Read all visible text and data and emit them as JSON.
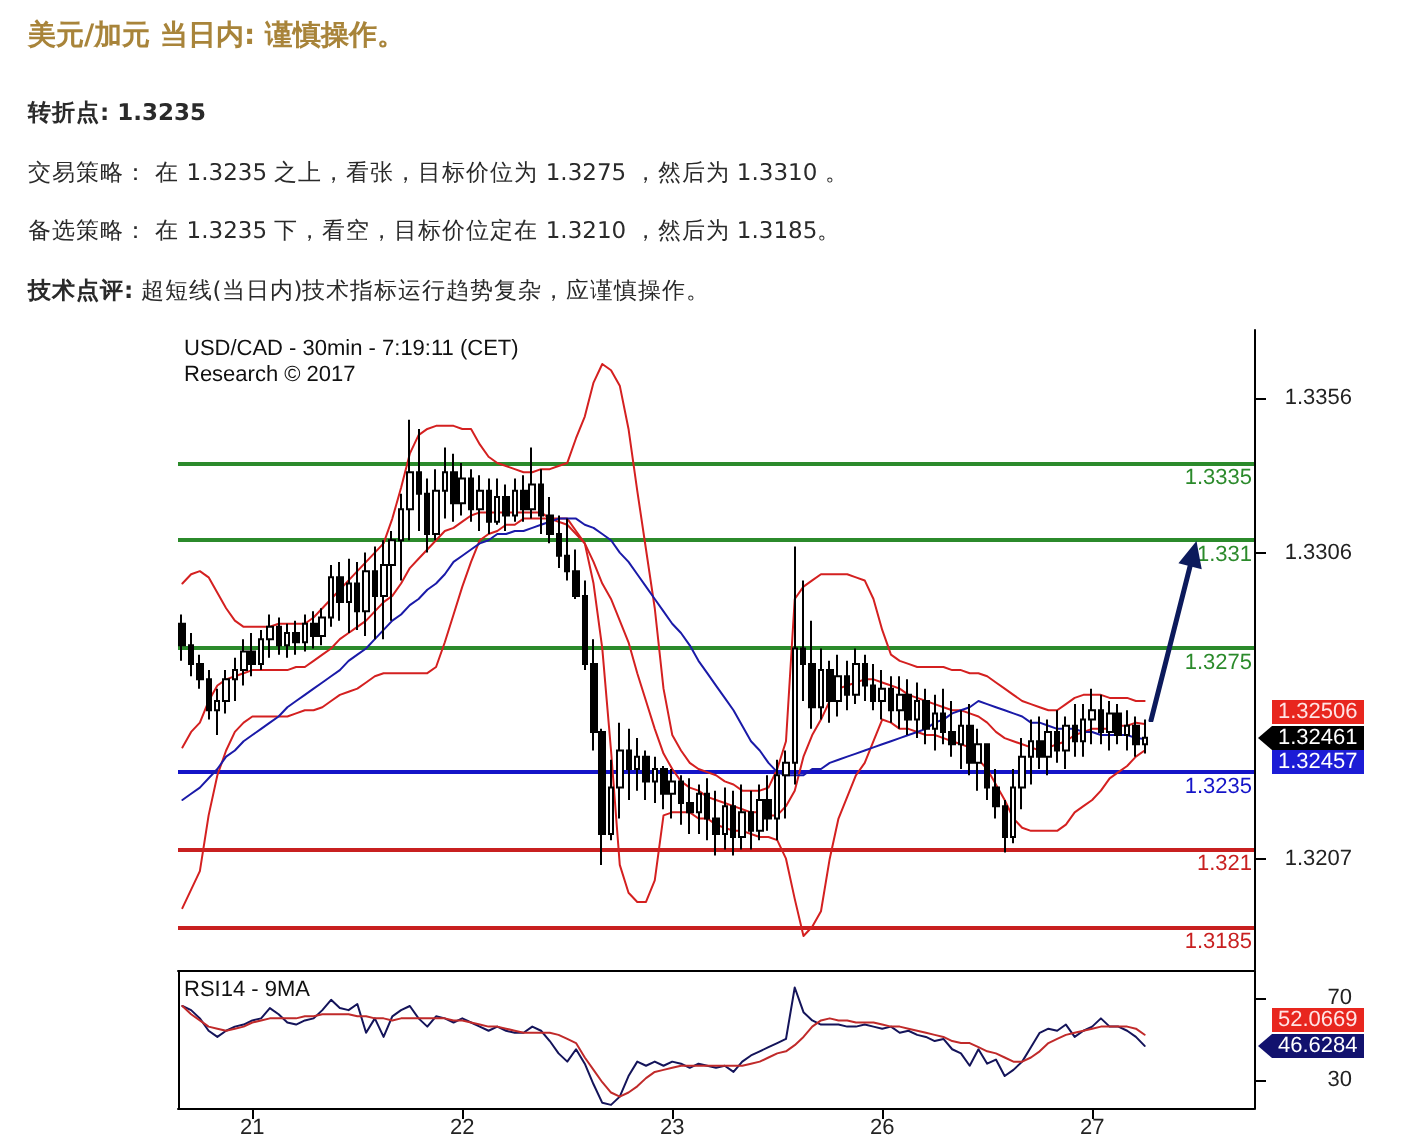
{
  "chart_data": [
    {
      "type": "candlestick",
      "title": "美元/加元 当日内: 谨慎操作。",
      "subtitle": "USD/CAD - 30min - 7:19:11 (CET)\nResearch © 2017",
      "annotations": [
        "转折点: 1.3235",
        "交易策略： 在 1.3235 之上，看张，目标价位为 1.3275 ，然后为 1.3310 。",
        "备选策略： 在 1.3235 下，看空，目标价位定在 1.3210 ，然后为 1.3185。",
        "技术点评: 超短线(当日内)技术指标运行趋势复杂，应谨慎操作。",
        "1.32506",
        "1.32461",
        "1.32457"
      ],
      "categories": [
        null,
        null,
        null,
        null,
        null,
        null,
        null,
        null,
        null,
        null,
        null,
        null,
        null,
        null,
        null,
        null,
        null,
        null,
        null,
        null,
        null,
        null,
        null,
        null,
        null,
        null,
        null,
        null,
        null,
        null,
        null,
        null,
        null,
        null,
        null,
        null,
        null,
        null,
        null,
        null,
        null,
        null,
        null,
        null,
        null,
        null,
        null,
        null,
        null,
        null,
        null,
        null,
        null,
        null,
        null,
        null,
        null,
        null,
        null,
        null,
        null,
        null,
        null,
        null,
        null,
        null,
        null,
        null,
        null,
        null,
        null,
        null,
        null,
        null,
        null,
        null,
        null,
        null,
        null,
        null,
        null,
        null,
        null,
        null,
        null,
        null,
        null,
        null,
        null,
        null,
        null,
        null,
        null,
        null,
        null,
        null,
        null,
        null,
        null,
        null,
        null,
        null,
        null,
        null,
        null,
        null,
        null,
        null,
        null,
        null,
        null
      ],
      "color": "#000000",
      "ohlc": [
        [
          1.3283,
          1.3286,
          1.3271,
          1.3276
        ],
        [
          1.3276,
          1.328,
          1.3266,
          1.327
        ],
        [
          1.327,
          1.3273,
          1.3262,
          1.3265
        ],
        [
          1.3265,
          1.3268,
          1.3252,
          1.3255
        ],
        [
          1.3255,
          1.3262,
          1.3247,
          1.3258
        ],
        [
          1.3258,
          1.3268,
          1.3254,
          1.3265
        ],
        [
          1.3265,
          1.3272,
          1.3258,
          1.3268
        ],
        [
          1.3268,
          1.3278,
          1.3263,
          1.3274
        ],
        [
          1.3274,
          1.328,
          1.3266,
          1.327
        ],
        [
          1.327,
          1.3281,
          1.3268,
          1.3278
        ],
        [
          1.3278,
          1.3286,
          1.3272,
          1.3282
        ],
        [
          1.3282,
          1.3285,
          1.3273,
          1.3276
        ],
        [
          1.3276,
          1.3283,
          1.3272,
          1.328
        ],
        [
          1.328,
          1.3284,
          1.3273,
          1.3277
        ],
        [
          1.3277,
          1.3286,
          1.3274,
          1.3283
        ],
        [
          1.3283,
          1.3287,
          1.3275,
          1.3279
        ],
        [
          1.3279,
          1.3288,
          1.3276,
          1.3285
        ],
        [
          1.3285,
          1.3302,
          1.3282,
          1.3298
        ],
        [
          1.3298,
          1.3303,
          1.3284,
          1.329
        ],
        [
          1.329,
          1.3304,
          1.328,
          1.3296
        ],
        [
          1.3296,
          1.3303,
          1.3281,
          1.3287
        ],
        [
          1.3287,
          1.3306,
          1.3279,
          1.33
        ],
        [
          1.33,
          1.3308,
          1.3278,
          1.3292
        ],
        [
          1.3292,
          1.331,
          1.3278,
          1.3302
        ],
        [
          1.3302,
          1.3313,
          1.3284,
          1.331
        ],
        [
          1.331,
          1.3325,
          1.3297,
          1.332
        ],
        [
          1.332,
          1.3349,
          1.331,
          1.3332
        ],
        [
          1.3332,
          1.3346,
          1.3313,
          1.3325
        ],
        [
          1.3325,
          1.333,
          1.3306,
          1.3312
        ],
        [
          1.3312,
          1.3333,
          1.331,
          1.3326
        ],
        [
          1.3326,
          1.334,
          1.3317,
          1.3332
        ],
        [
          1.3332,
          1.3338,
          1.3316,
          1.3322
        ],
        [
          1.3322,
          1.3335,
          1.3318,
          1.333
        ],
        [
          1.333,
          1.3333,
          1.3316,
          1.332
        ],
        [
          1.332,
          1.3331,
          1.3313,
          1.3326
        ],
        [
          1.3326,
          1.333,
          1.3312,
          1.3316
        ],
        [
          1.3316,
          1.333,
          1.3315,
          1.3324
        ],
        [
          1.3324,
          1.3328,
          1.3313,
          1.3318
        ],
        [
          1.3318,
          1.333,
          1.3316,
          1.3326
        ],
        [
          1.3326,
          1.3331,
          1.3316,
          1.332
        ],
        [
          1.332,
          1.334,
          1.3317,
          1.3328
        ],
        [
          1.3328,
          1.3333,
          1.3312,
          1.3318
        ],
        [
          1.3318,
          1.3324,
          1.3309,
          1.3312
        ],
        [
          1.3312,
          1.3318,
          1.3301,
          1.3305
        ],
        [
          1.3305,
          1.3317,
          1.3297,
          1.33
        ],
        [
          1.33,
          1.3307,
          1.3291,
          1.3292
        ],
        [
          1.3292,
          1.3297,
          1.3268,
          1.327
        ],
        [
          1.327,
          1.3278,
          1.3242,
          1.3248
        ],
        [
          1.3248,
          1.3249,
          1.3205,
          1.3215
        ],
        [
          1.3215,
          1.3239,
          1.3213,
          1.323
        ],
        [
          1.323,
          1.3251,
          1.322,
          1.3242
        ],
        [
          1.3242,
          1.3249,
          1.3226,
          1.3236
        ],
        [
          1.3236,
          1.3246,
          1.3229,
          1.324
        ],
        [
          1.324,
          1.3242,
          1.3226,
          1.3232
        ],
        [
          1.3232,
          1.324,
          1.3225,
          1.3236
        ],
        [
          1.3236,
          1.3237,
          1.3223,
          1.3228
        ],
        [
          1.3228,
          1.3236,
          1.322,
          1.3232
        ],
        [
          1.3232,
          1.3234,
          1.3218,
          1.3225
        ],
        [
          1.3225,
          1.3233,
          1.3215,
          1.3222
        ],
        [
          1.3222,
          1.3231,
          1.3215,
          1.3228
        ],
        [
          1.3228,
          1.3233,
          1.3213,
          1.322
        ],
        [
          1.322,
          1.3229,
          1.3208,
          1.3215
        ],
        [
          1.3215,
          1.323,
          1.321,
          1.3224
        ],
        [
          1.3224,
          1.3229,
          1.3208,
          1.3214
        ],
        [
          1.3214,
          1.3231,
          1.321,
          1.3222
        ],
        [
          1.3222,
          1.3229,
          1.321,
          1.3216
        ],
        [
          1.3216,
          1.3231,
          1.3213,
          1.3226
        ],
        [
          1.3226,
          1.3234,
          1.3216,
          1.322
        ],
        [
          1.322,
          1.3239,
          1.3213,
          1.3234
        ],
        [
          1.3234,
          1.3242,
          1.322,
          1.3238
        ],
        [
          1.3238,
          1.3308,
          1.3231,
          1.3275
        ],
        [
          1.3275,
          1.3297,
          1.3258,
          1.327
        ],
        [
          1.327,
          1.3284,
          1.3249,
          1.3256
        ],
        [
          1.3256,
          1.3275,
          1.3252,
          1.3268
        ],
        [
          1.3268,
          1.3271,
          1.3251,
          1.3258
        ],
        [
          1.3258,
          1.3273,
          1.3253,
          1.3266
        ],
        [
          1.3266,
          1.3271,
          1.3255,
          1.326
        ],
        [
          1.326,
          1.3275,
          1.3257,
          1.327
        ],
        [
          1.327,
          1.3273,
          1.3258,
          1.3263
        ],
        [
          1.3263,
          1.327,
          1.3255,
          1.3258
        ],
        [
          1.3258,
          1.3268,
          1.3252,
          1.3262
        ],
        [
          1.3262,
          1.3266,
          1.3251,
          1.3255
        ],
        [
          1.3255,
          1.3266,
          1.3249,
          1.326
        ],
        [
          1.326,
          1.3265,
          1.3247,
          1.3252
        ],
        [
          1.3252,
          1.3264,
          1.3246,
          1.3258
        ],
        [
          1.3258,
          1.3262,
          1.3244,
          1.3249
        ],
        [
          1.3249,
          1.326,
          1.3242,
          1.3254
        ],
        [
          1.3254,
          1.3262,
          1.3244,
          1.3248
        ],
        [
          1.3248,
          1.3258,
          1.324,
          1.3244
        ],
        [
          1.3244,
          1.3255,
          1.3236,
          1.325
        ],
        [
          1.325,
          1.3257,
          1.3234,
          1.3238
        ],
        [
          1.3238,
          1.3249,
          1.3229,
          1.3244
        ],
        [
          1.3244,
          1.3244,
          1.3226,
          1.323
        ],
        [
          1.323,
          1.3236,
          1.322,
          1.3224
        ],
        [
          1.3224,
          1.3226,
          1.3209,
          1.3214
        ],
        [
          1.3214,
          1.3236,
          1.3212,
          1.323
        ],
        [
          1.323,
          1.3246,
          1.3223,
          1.324
        ],
        [
          1.324,
          1.3252,
          1.3231,
          1.3245
        ],
        [
          1.3245,
          1.3253,
          1.3236,
          1.324
        ],
        [
          1.324,
          1.3252,
          1.3234,
          1.3248
        ],
        [
          1.3248,
          1.3255,
          1.3238,
          1.3242
        ],
        [
          1.3242,
          1.3253,
          1.3236,
          1.325
        ],
        [
          1.325,
          1.3257,
          1.324,
          1.3245
        ],
        [
          1.3245,
          1.3257,
          1.324,
          1.3252
        ],
        [
          1.3252,
          1.3262,
          1.3244,
          1.3255
        ],
        [
          1.3255,
          1.326,
          1.3244,
          1.3248
        ],
        [
          1.3248,
          1.3258,
          1.3242,
          1.3254
        ],
        [
          1.3254,
          1.3257,
          1.3244,
          1.3247
        ],
        [
          1.3247,
          1.3255,
          1.3242,
          1.325
        ],
        [
          1.325,
          1.3253,
          1.324,
          1.3244
        ],
        [
          1.3244,
          1.3252,
          1.3241,
          1.32461
        ]
      ],
      "series": [
        {
          "type": "line",
          "color": "#d42020",
          "values": [
            1.3296,
            1.3299,
            1.33,
            1.3298,
            1.3293,
            1.3288,
            1.3284,
            1.3282,
            1.3282,
            1.3282,
            1.3282,
            1.3283,
            1.3283,
            1.3283,
            1.3283,
            1.3285,
            1.3288,
            1.3291,
            1.3294,
            1.3297,
            1.33,
            1.3303,
            1.3306,
            1.3309,
            1.3317,
            1.3327,
            1.3338,
            1.3344,
            1.3346,
            1.3347,
            1.3347,
            1.3347,
            1.3346,
            1.3346,
            1.3341,
            1.3337,
            1.3335,
            1.3334,
            1.3333,
            1.3332,
            1.3332,
            1.3333,
            1.3333,
            1.3334,
            1.3335,
            1.3343,
            1.335,
            1.3361,
            1.3367,
            1.3365,
            1.336,
            1.3346,
            1.3326,
            1.3307,
            1.3288,
            1.3262,
            1.3247,
            1.3242,
            1.3238,
            1.3236,
            1.3235,
            1.3234,
            1.3232,
            1.3231,
            1.3229,
            1.3229,
            1.3229,
            1.323,
            1.3236,
            1.3245,
            1.3291,
            1.3295,
            1.3297,
            1.3299,
            1.3299,
            1.3299,
            1.3299,
            1.3298,
            1.3297,
            1.3291,
            1.3281,
            1.3273,
            1.3271,
            1.327,
            1.3269,
            1.3269,
            1.3269,
            1.3269,
            1.3268,
            1.3268,
            1.3267,
            1.3267,
            1.3266,
            1.3264,
            1.3262,
            1.326,
            1.3258,
            1.3257,
            1.3256,
            1.3255,
            1.3255,
            1.3257,
            1.3259,
            1.326,
            1.326,
            1.326,
            1.3259,
            1.3259,
            1.3259,
            1.3258,
            1.3258
          ]
        },
        {
          "type": "line",
          "color": "#d42020",
          "values": [
            1.3243,
            1.3248,
            1.3251,
            1.3258,
            1.3263,
            1.3265,
            1.3266,
            1.3267,
            1.3268,
            1.3268,
            1.3268,
            1.3268,
            1.3268,
            1.3269,
            1.3269,
            1.3271,
            1.3273,
            1.3275,
            1.3278,
            1.328,
            1.3282,
            1.3284,
            1.3287,
            1.329,
            1.3292,
            1.3296,
            1.3301,
            1.3304,
            1.3307,
            1.331,
            1.3313,
            1.3314,
            1.3316,
            1.3318,
            1.3319,
            1.3319,
            1.3319,
            1.3319,
            1.3319,
            1.3319,
            1.3319,
            1.3319,
            1.3317,
            1.3316,
            1.3315,
            1.3312,
            1.3309,
            1.3303,
            1.3296,
            1.3291,
            1.3284,
            1.3277,
            1.3267,
            1.3258,
            1.3249,
            1.3241,
            1.3236,
            1.3232,
            1.323,
            1.3229,
            1.3227,
            1.3226,
            1.3225,
            1.3224,
            1.3223,
            1.3222,
            1.3222,
            1.3221,
            1.3221,
            1.3224,
            1.3229,
            1.324,
            1.3247,
            1.3252,
            1.3258,
            1.3262,
            1.3263,
            1.3264,
            1.3265,
            1.3265,
            1.3264,
            1.3263,
            1.3262,
            1.326,
            1.3259,
            1.3258,
            1.3257,
            1.3256,
            1.3255,
            1.3255,
            1.3254,
            1.3253,
            1.3251,
            1.3248,
            1.3246,
            1.3245,
            1.3244,
            1.3243,
            1.3242,
            1.3243,
            1.3244,
            1.3245,
            1.3247,
            1.3248,
            1.3249,
            1.3249,
            1.3249,
            1.325,
            1.325,
            1.3251,
            1.32506
          ]
        },
        {
          "type": "line",
          "color": "#d42020",
          "values": [
            1.3191,
            1.3197,
            1.3203,
            1.3221,
            1.3234,
            1.3242,
            1.3248,
            1.3251,
            1.3253,
            1.3253,
            1.3253,
            1.3253,
            1.3253,
            1.3254,
            1.3255,
            1.3255,
            1.3256,
            1.3258,
            1.326,
            1.3261,
            1.3262,
            1.3264,
            1.3266,
            1.3267,
            1.3267,
            1.3267,
            1.3267,
            1.3267,
            1.3267,
            1.3269,
            1.3277,
            1.3286,
            1.3295,
            1.3303,
            1.331,
            1.3312,
            1.3313,
            1.3315,
            1.3315,
            1.3317,
            1.3317,
            1.3317,
            1.3317,
            1.3317,
            1.3317,
            1.3313,
            1.3309,
            1.3296,
            1.3275,
            1.3242,
            1.3205,
            1.3196,
            1.3193,
            1.3193,
            1.32,
            1.3221,
            1.3222,
            1.3222,
            1.3222,
            1.322,
            1.322,
            1.3218,
            1.3217,
            1.3216,
            1.3216,
            1.3215,
            1.3214,
            1.3214,
            1.3213,
            1.3207,
            1.3194,
            1.3182,
            1.3185,
            1.319,
            1.3207,
            1.322,
            1.3227,
            1.3234,
            1.3238,
            1.3245,
            1.3252,
            1.3251,
            1.3249,
            1.3249,
            1.3248,
            1.3247,
            1.3247,
            1.3246,
            1.3245,
            1.3244,
            1.3243,
            1.3239,
            1.3236,
            1.3231,
            1.3226,
            1.322,
            1.3217,
            1.3216,
            1.3216,
            1.3216,
            1.3216,
            1.3218,
            1.3222,
            1.3224,
            1.3226,
            1.3229,
            1.3233,
            1.3235,
            1.3237,
            1.324,
            1.3242
          ]
        },
        {
          "type": "line",
          "color": "#1a1aa8",
          "values": [
            1.3226,
            1.3228,
            1.323,
            1.3233,
            1.3236,
            1.324,
            1.3242,
            1.3245,
            1.3247,
            1.3249,
            1.3251,
            1.3253,
            1.3256,
            1.3258,
            1.326,
            1.3262,
            1.3264,
            1.3266,
            1.3268,
            1.3271,
            1.3273,
            1.3275,
            1.3278,
            1.3281,
            1.3284,
            1.3286,
            1.3289,
            1.3291,
            1.3294,
            1.3296,
            1.3299,
            1.3303,
            1.3305,
            1.3307,
            1.3309,
            1.331,
            1.3312,
            1.3312,
            1.3313,
            1.3313,
            1.3314,
            1.3315,
            1.3316,
            1.3317,
            1.3317,
            1.3317,
            1.3315,
            1.3314,
            1.3312,
            1.331,
            1.3306,
            1.3303,
            1.3299,
            1.3295,
            1.3291,
            1.3287,
            1.3283,
            1.328,
            1.3276,
            1.3271,
            1.3267,
            1.3263,
            1.3259,
            1.3255,
            1.325,
            1.3245,
            1.3242,
            1.3238,
            1.3235,
            1.3234,
            1.3234,
            1.3234,
            1.3236,
            1.3236,
            1.3238,
            1.3239,
            1.324,
            1.3241,
            1.3242,
            1.3243,
            1.3244,
            1.3245,
            1.3246,
            1.3247,
            1.3248,
            1.3249,
            1.3251,
            1.3252,
            1.3254,
            1.3255,
            1.3256,
            1.3258,
            1.3257,
            1.3256,
            1.3255,
            1.3254,
            1.3253,
            1.3251,
            1.3251,
            1.325,
            1.3249,
            1.3249,
            1.3249,
            1.3248,
            1.3248,
            1.3247,
            1.3247,
            1.3247,
            1.3247,
            1.3246,
            1.32457
          ]
        }
      ],
      "ylim": [
        1.3171,
        1.3378
      ],
      "yticks": [
        1.3207,
        1.3306,
        1.3356
      ],
      "ref_lines": [
        {
          "axis": "y",
          "value": 1.3335,
          "label": "1.3335",
          "color": "#2b8a2b"
        },
        {
          "axis": "y",
          "value": 1.331,
          "label": "1.331",
          "color": "#2b8a2b"
        },
        {
          "axis": "y",
          "value": 1.3275,
          "label": "1.3275",
          "color": "#2b8a2b"
        },
        {
          "axis": "y",
          "value": 1.3235,
          "label": "1.3235",
          "color": "#1414c8"
        },
        {
          "axis": "y",
          "value": 1.321,
          "label": "1.321",
          "color": "#c82020"
        },
        {
          "axis": "y",
          "value": 1.3185,
          "label": "1.3185",
          "color": "#c82020"
        }
      ],
      "tick_labels": "y"
    },
    {
      "type": "line",
      "title": "RSI14 - 9MA",
      "annotations": [
        "52.0669",
        "46.6284"
      ],
      "categories": [
        null,
        null,
        null,
        null,
        null,
        null,
        null,
        null,
        "21",
        null,
        null,
        null,
        null,
        null,
        null,
        null,
        null,
        null,
        null,
        null,
        null,
        null,
        null,
        null,
        null,
        null,
        null,
        null,
        null,
        null,
        null,
        null,
        "22",
        null,
        null,
        null,
        null,
        null,
        null,
        null,
        null,
        null,
        null,
        null,
        null,
        null,
        null,
        null,
        null,
        null,
        null,
        null,
        null,
        null,
        null,
        null,
        "23",
        null,
        null,
        null,
        null,
        null,
        null,
        null,
        null,
        null,
        null,
        null,
        null,
        null,
        null,
        null,
        null,
        null,
        null,
        null,
        null,
        null,
        null,
        null,
        "26",
        null,
        null,
        null,
        null,
        null,
        null,
        null,
        null,
        null,
        null,
        null,
        null,
        null,
        null,
        null,
        null,
        null,
        null,
        null,
        null,
        null,
        null,
        null,
        "27",
        null,
        null,
        null,
        null,
        null,
        null
      ],
      "series": [
        {
          "color": "#14145a",
          "values": [
            66,
            64,
            60,
            54,
            51,
            54,
            56,
            57,
            59,
            60,
            65,
            62,
            58,
            57,
            59,
            60,
            64,
            69,
            65,
            64,
            67,
            53,
            60,
            51,
            61,
            64,
            66,
            60,
            56,
            61,
            60,
            58,
            60,
            58,
            56,
            54,
            56,
            54,
            53,
            53,
            56,
            54,
            49,
            43,
            39,
            45,
            38,
            28,
            19,
            18,
            22,
            32,
            39,
            37,
            39,
            37,
            39,
            38,
            36,
            38,
            37,
            36,
            37,
            34,
            39,
            42,
            44,
            46,
            48,
            50,
            75,
            63,
            59,
            57,
            57,
            57,
            56,
            56,
            57,
            56,
            55,
            56,
            53,
            54,
            52,
            51,
            49,
            50,
            45,
            43,
            37,
            45,
            38,
            40,
            32,
            35,
            39,
            46,
            53,
            55,
            54,
            57,
            51,
            54,
            56,
            60,
            56,
            56,
            54,
            51,
            46.6284
          ]
        },
        {
          "color": "#c02a2a",
          "values": [
            66,
            62,
            59,
            56,
            55,
            54,
            55,
            56,
            58,
            59,
            60,
            60,
            60,
            60,
            61,
            61,
            62,
            62,
            62,
            62,
            61,
            61,
            60,
            60,
            59,
            60,
            60,
            60,
            60,
            60,
            60,
            59,
            59,
            58,
            57,
            56,
            56,
            55,
            54,
            53,
            53,
            53,
            53,
            52,
            50,
            48,
            41,
            35,
            29,
            24,
            22,
            24,
            27,
            31,
            34,
            35,
            36,
            37,
            37,
            37,
            37,
            37,
            37,
            37,
            37,
            38,
            39,
            41,
            43,
            44,
            47,
            51,
            56,
            59,
            60,
            59,
            59,
            58,
            58,
            58,
            57,
            56,
            56,
            55,
            54,
            53,
            52,
            51,
            49,
            48,
            48,
            46,
            44,
            43,
            41,
            39,
            39,
            41,
            44,
            48,
            50,
            52,
            53,
            54,
            55,
            56,
            56,
            56,
            56,
            55,
            52.0669
          ]
        }
      ],
      "ylim": [
        16,
        83
      ],
      "yticks": [
        30,
        70
      ]
    }
  ]
}
